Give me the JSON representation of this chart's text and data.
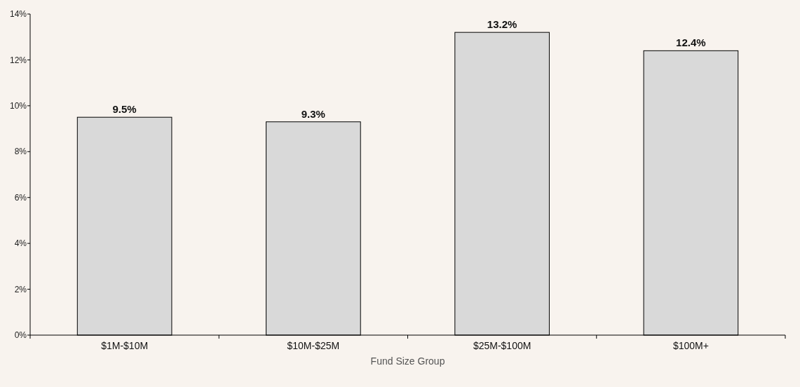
{
  "chart_data": {
    "type": "bar",
    "xlabel": "Fund Size Group",
    "categories": [
      "$1M-$10M",
      "$10M-$25M",
      "$25M-$100M",
      "$100M+"
    ],
    "values": [
      9.5,
      9.3,
      13.2,
      12.4
    ],
    "value_labels": [
      "9.5%",
      "9.3%",
      "13.2%",
      "12.4%"
    ],
    "color": "#d9d9d9",
    "ylim": [
      0,
      14
    ],
    "yticks": [
      {
        "value": 0,
        "label": "0%"
      },
      {
        "value": 2,
        "label": "2%"
      },
      {
        "value": 4,
        "label": "4%"
      },
      {
        "value": 6,
        "label": "6%"
      },
      {
        "value": 8,
        "label": "8%"
      },
      {
        "value": 10,
        "label": "10%"
      },
      {
        "value": 12,
        "label": "12%"
      },
      {
        "value": 14,
        "label": "14%"
      }
    ],
    "grid": false
  }
}
